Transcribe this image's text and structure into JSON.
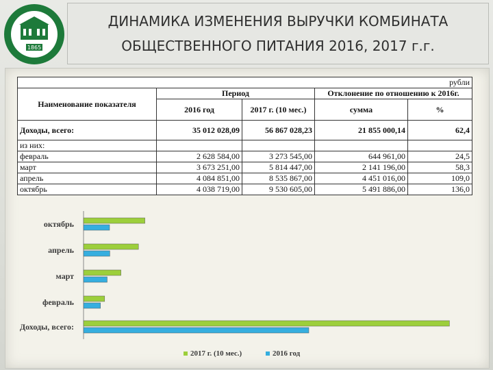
{
  "title": "ДИНАМИКА ИЗМЕНЕНИЯ ВЫРУЧКИ КОМБИНАТА\nОБЩЕСТВЕННОГО ПИТАНИЯ 2016, 2017 г.г.",
  "logo": {
    "year": "1865",
    "colors": {
      "ring": "#1d7a3a",
      "fill": "#ffffff"
    }
  },
  "table": {
    "unit": "рубли",
    "col_name": "Наименование показателя",
    "period": "Период",
    "deviation": "Отклонение по отношению к 2016г.",
    "col_2016": "2016 год",
    "col_2017": "2017 г. (10 мес.)",
    "col_sum": "сумма",
    "col_pct": "%",
    "total_label": "Доходы, всего:",
    "total": {
      "v2016": "35 012 028,09",
      "v2017": "56 867 028,23",
      "sum": "21 855 000,14",
      "pct": "62,4"
    },
    "of_which": "из них:",
    "rows": [
      {
        "label": "февраль",
        "v2016": "2 628 584,00",
        "v2017": "3 273 545,00",
        "sum": "644 961,00",
        "pct": "24,5"
      },
      {
        "label": "март",
        "v2016": "3 673 251,00",
        "v2017": "5 814 447,00",
        "sum": "2 141 196,00",
        "pct": "58,3"
      },
      {
        "label": "апрель",
        "v2016": "4 084 851,00",
        "v2017": "8 535 867,00",
        "sum": "4 451 016,00",
        "pct": "109,0"
      },
      {
        "label": "октябрь",
        "v2016": "4 038 719,00",
        "v2017": "9 530 605,00",
        "sum": "5 491 886,00",
        "pct": "136,0"
      }
    ]
  },
  "chart_data": {
    "type": "bar",
    "orientation": "horizontal",
    "categories": [
      "октябрь",
      "апрель",
      "март",
      "февраль",
      "Доходы, всего:"
    ],
    "series": [
      {
        "name": "2017 г. (10 мес.)",
        "values": [
          9530605,
          8535867,
          5814447,
          3273545,
          56867028.23
        ],
        "color": "#9ccf3b"
      },
      {
        "name": "2016 год",
        "values": [
          4038719,
          4084851,
          3673251,
          2628584,
          35012028.09
        ],
        "color": "#35aedf"
      }
    ],
    "xlim": [
      0,
      58000000
    ],
    "grid": false,
    "legend": "bottom"
  }
}
